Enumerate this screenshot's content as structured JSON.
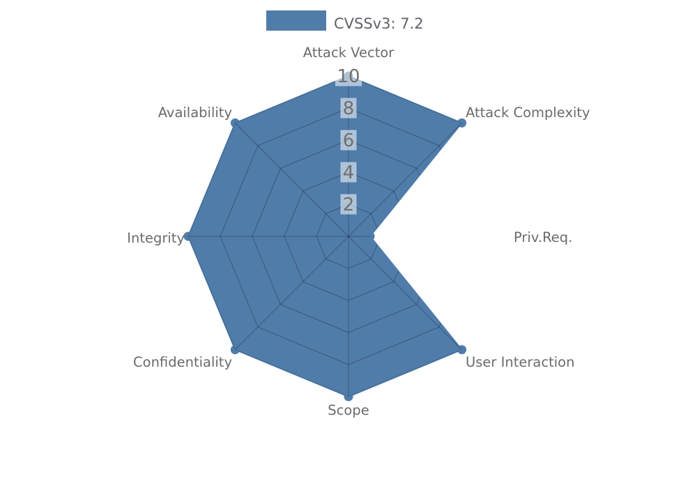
{
  "legend": {
    "label": "CVSSv3: 7.2",
    "swatch_color": "#507caa"
  },
  "chart_data": {
    "type": "radar",
    "title": "CVSSv3: 7.2",
    "score": "7.2",
    "categories": [
      "Attack Vector",
      "Attack Complexity",
      "Priv.Req.",
      "User Interaction",
      "Scope",
      "Confidentiality",
      "Integrity",
      "Availability"
    ],
    "values": [
      10,
      10,
      1.35,
      10,
      10,
      10,
      10,
      10
    ],
    "ticks": [
      2,
      4,
      6,
      8,
      10
    ],
    "rmax": 10,
    "grid_shape": "polygon-web",
    "grid_visible_only_inside_fill": true,
    "legend_position": "top-center",
    "colors": {
      "fill": "#507caa",
      "grid_line": "rgba(0,0,0,0.22)",
      "axis_label": "#6b6b6b",
      "tick_label": "#6f6f6f",
      "tick_box": "rgba(255,255,255,0.55)",
      "legend_text": "#5f6368"
    }
  }
}
